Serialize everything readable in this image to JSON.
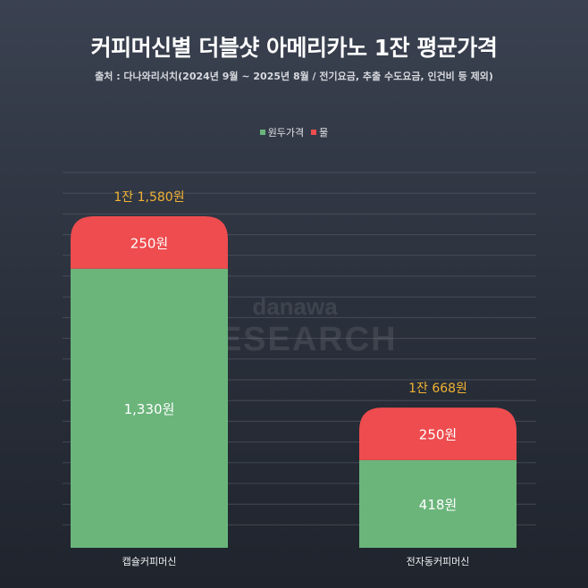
{
  "header": {
    "title": "커피머신별 더블샷 아메리카노 1잔 평균가격",
    "subtitle": "출처 : 다나와리서치(2024년 9월 ~ 2025년 8월 / 전기요금, 추출 수도요금, 인건비 등 제외)"
  },
  "legend": [
    {
      "label": "원두가격",
      "color": "#6bb57b"
    },
    {
      "label": "물",
      "color": "#ee4c4f"
    }
  ],
  "watermark": {
    "line1": "danawa",
    "line2": "RESEARCH"
  },
  "chart_data": {
    "type": "bar",
    "stacked": true,
    "categories": [
      "캡슐커피머신",
      "전자동커피머신"
    ],
    "series": [
      {
        "name": "원두가격",
        "color": "#6bb57b",
        "values": [
          1330,
          418
        ],
        "labels": [
          "1,330원",
          "418원"
        ]
      },
      {
        "name": "물",
        "color": "#ee4c4f",
        "values": [
          250,
          250
        ],
        "labels": [
          "250원",
          "250원"
        ]
      }
    ],
    "totals": [
      1580,
      668
    ],
    "total_labels": [
      "1잔 1,580원",
      "1잔 668원"
    ],
    "total_label_color": "#f2b233",
    "ylim": [
      0,
      1580
    ],
    "grid": true,
    "legend_position": "top-center"
  }
}
